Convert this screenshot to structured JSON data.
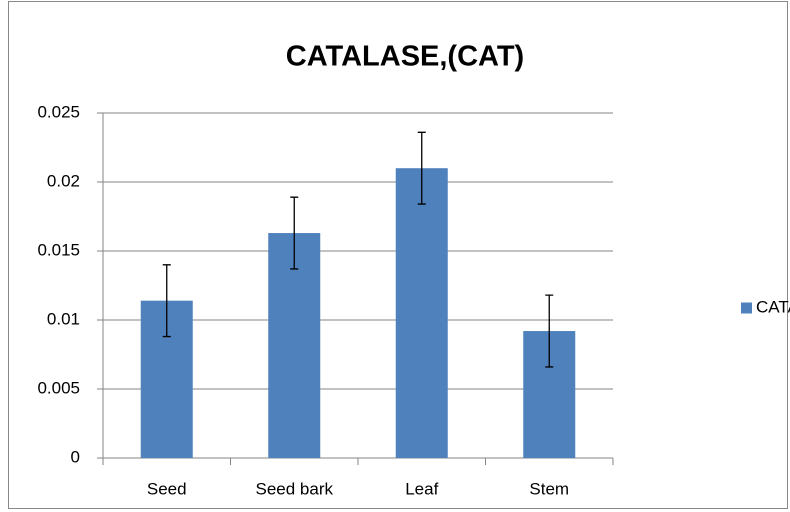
{
  "chart_data": {
    "type": "bar",
    "title": "CATALASE,(CAT)",
    "categories": [
      "Seed",
      "Seed bark",
      "Leaf",
      "Stem"
    ],
    "series": [
      {
        "name": "CATALASE",
        "color": "#4f81bd",
        "values": [
          0.0114,
          0.0163,
          0.021,
          0.0092
        ],
        "errors": [
          0.0026,
          0.0026,
          0.0026,
          0.0026
        ]
      }
    ],
    "ylim": [
      0,
      0.025
    ],
    "yticks": [
      0,
      0.005,
      0.01,
      0.015,
      0.02,
      0.025
    ],
    "grid": true,
    "legend": "right"
  }
}
